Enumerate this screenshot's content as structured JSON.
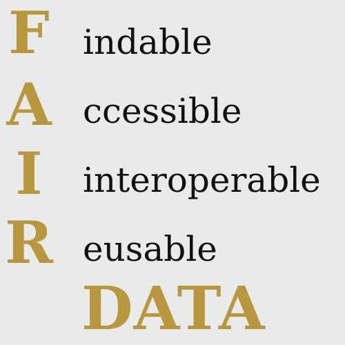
{
  "colors": {
    "background": "#e9ebea",
    "accent_gold": "#b9973f",
    "text_dark": "#111111"
  },
  "acronym_rows": [
    {
      "letter": "F",
      "word": "indable"
    },
    {
      "letter": "A",
      "word": "ccessible"
    },
    {
      "letter": "I",
      "word": "interoperable"
    },
    {
      "letter": "R",
      "word": "eusable"
    }
  ],
  "footer_word": "DATA"
}
